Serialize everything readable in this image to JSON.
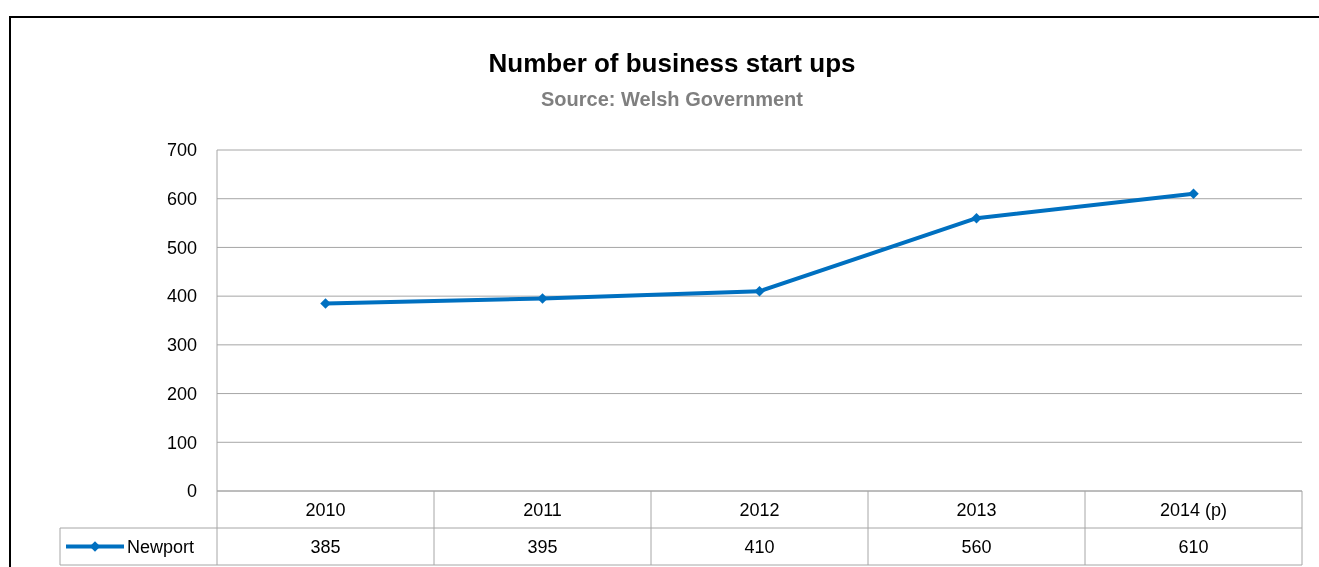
{
  "chart_data": {
    "type": "line",
    "title": "Number of business start ups",
    "subtitle": "Source: Welsh Government",
    "categories": [
      "2010",
      "2011",
      "2012",
      "2013",
      "2014 (p)"
    ],
    "series": [
      {
        "name": "Newport",
        "color": "#0070c0",
        "values": [
          385,
          395,
          410,
          560,
          610
        ]
      }
    ],
    "ylim": [
      0,
      700
    ],
    "yticks": [
      0,
      100,
      200,
      300,
      400,
      500,
      600,
      700
    ],
    "grid": "y",
    "marker": "diamond",
    "data_labels": true,
    "legend": "bottom"
  }
}
